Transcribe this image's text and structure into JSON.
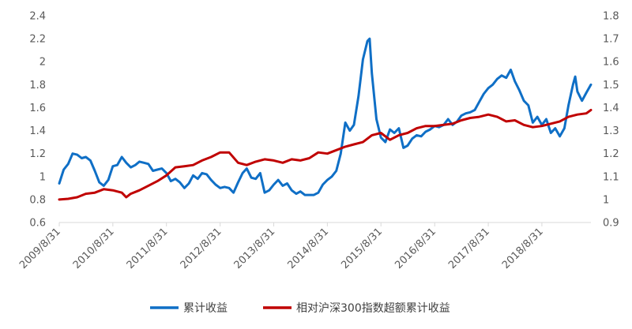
{
  "chart_data": {
    "type": "line",
    "grid": false,
    "legend_position": "bottom",
    "left_axis": {
      "range": [
        0.6,
        2.4
      ],
      "ticks": [
        "0.6",
        "0.8",
        "1",
        "1.2",
        "1.4",
        "1.6",
        "1.8",
        "2",
        "2.2",
        "2.4"
      ]
    },
    "right_axis": {
      "range": [
        0.9,
        1.8
      ],
      "ticks": [
        "0.9",
        "1",
        "1.1",
        "1.2",
        "1.3",
        "1.4",
        "1.5",
        "1.6",
        "1.7",
        "1.8"
      ]
    },
    "x_ticks": [
      "2009/8/31",
      "2010/8/31",
      "2011/8/31",
      "2012/8/31",
      "2013/8/31",
      "2014/8/31",
      "2015/8/31",
      "2016/8/31",
      "2017/8/31",
      "2018/8/31"
    ],
    "x_range": [
      "2009-08-31",
      "2019-07-31"
    ],
    "series": [
      {
        "name": "累计收益",
        "axis": "left",
        "color": "#0f6fc6",
        "points": [
          [
            "2009-08-31",
            0.94
          ],
          [
            "2009-09-30",
            1.06
          ],
          [
            "2009-10-31",
            1.11
          ],
          [
            "2009-11-30",
            1.2
          ],
          [
            "2009-12-31",
            1.19
          ],
          [
            "2010-01-31",
            1.16
          ],
          [
            "2010-02-28",
            1.17
          ],
          [
            "2010-03-31",
            1.14
          ],
          [
            "2010-04-30",
            1.05
          ],
          [
            "2010-05-31",
            0.95
          ],
          [
            "2010-06-30",
            0.92
          ],
          [
            "2010-07-31",
            0.97
          ],
          [
            "2010-08-31",
            1.09
          ],
          [
            "2010-09-30",
            1.1
          ],
          [
            "2010-10-31",
            1.17
          ],
          [
            "2010-11-30",
            1.12
          ],
          [
            "2010-12-31",
            1.08
          ],
          [
            "2011-01-31",
            1.1
          ],
          [
            "2011-02-28",
            1.13
          ],
          [
            "2011-03-31",
            1.12
          ],
          [
            "2011-04-30",
            1.11
          ],
          [
            "2011-05-31",
            1.05
          ],
          [
            "2011-06-30",
            1.06
          ],
          [
            "2011-07-31",
            1.07
          ],
          [
            "2011-08-31",
            1.03
          ],
          [
            "2011-09-30",
            0.96
          ],
          [
            "2011-10-31",
            0.98
          ],
          [
            "2011-11-30",
            0.95
          ],
          [
            "2011-12-31",
            0.9
          ],
          [
            "2012-01-31",
            0.94
          ],
          [
            "2012-02-29",
            1.01
          ],
          [
            "2012-03-31",
            0.98
          ],
          [
            "2012-04-30",
            1.03
          ],
          [
            "2012-05-31",
            1.02
          ],
          [
            "2012-06-30",
            0.97
          ],
          [
            "2012-07-31",
            0.93
          ],
          [
            "2012-08-31",
            0.9
          ],
          [
            "2012-09-30",
            0.91
          ],
          [
            "2012-10-31",
            0.9
          ],
          [
            "2012-11-30",
            0.86
          ],
          [
            "2012-12-31",
            0.95
          ],
          [
            "2013-01-31",
            1.03
          ],
          [
            "2013-02-28",
            1.07
          ],
          [
            "2013-03-31",
            0.99
          ],
          [
            "2013-04-30",
            0.98
          ],
          [
            "2013-05-31",
            1.03
          ],
          [
            "2013-06-30",
            0.86
          ],
          [
            "2013-07-31",
            0.88
          ],
          [
            "2013-08-31",
            0.93
          ],
          [
            "2013-09-30",
            0.97
          ],
          [
            "2013-10-31",
            0.92
          ],
          [
            "2013-11-30",
            0.94
          ],
          [
            "2013-12-31",
            0.88
          ],
          [
            "2014-01-31",
            0.85
          ],
          [
            "2014-02-28",
            0.87
          ],
          [
            "2014-03-31",
            0.84
          ],
          [
            "2014-04-30",
            0.84
          ],
          [
            "2014-05-31",
            0.84
          ],
          [
            "2014-06-30",
            0.86
          ],
          [
            "2014-07-31",
            0.93
          ],
          [
            "2014-08-31",
            0.97
          ],
          [
            "2014-09-30",
            1.0
          ],
          [
            "2014-10-31",
            1.05
          ],
          [
            "2014-11-30",
            1.2
          ],
          [
            "2014-12-31",
            1.47
          ],
          [
            "2015-01-31",
            1.4
          ],
          [
            "2015-02-28",
            1.45
          ],
          [
            "2015-03-31",
            1.7
          ],
          [
            "2015-04-30",
            2.02
          ],
          [
            "2015-05-31",
            2.18
          ],
          [
            "2015-06-15",
            2.2
          ],
          [
            "2015-06-30",
            1.9
          ],
          [
            "2015-07-31",
            1.5
          ],
          [
            "2015-08-31",
            1.34
          ],
          [
            "2015-09-30",
            1.3
          ],
          [
            "2015-10-31",
            1.41
          ],
          [
            "2015-11-30",
            1.38
          ],
          [
            "2015-12-31",
            1.42
          ],
          [
            "2016-01-31",
            1.25
          ],
          [
            "2016-02-29",
            1.27
          ],
          [
            "2016-03-31",
            1.33
          ],
          [
            "2016-04-30",
            1.36
          ],
          [
            "2016-05-31",
            1.35
          ],
          [
            "2016-06-30",
            1.39
          ],
          [
            "2016-07-31",
            1.41
          ],
          [
            "2016-08-31",
            1.44
          ],
          [
            "2016-09-30",
            1.43
          ],
          [
            "2016-10-31",
            1.45
          ],
          [
            "2016-11-30",
            1.5
          ],
          [
            "2016-12-31",
            1.45
          ],
          [
            "2017-01-31",
            1.48
          ],
          [
            "2017-02-28",
            1.53
          ],
          [
            "2017-03-31",
            1.55
          ],
          [
            "2017-04-30",
            1.56
          ],
          [
            "2017-05-31",
            1.58
          ],
          [
            "2017-06-30",
            1.65
          ],
          [
            "2017-07-31",
            1.72
          ],
          [
            "2017-08-31",
            1.77
          ],
          [
            "2017-09-30",
            1.8
          ],
          [
            "2017-10-31",
            1.85
          ],
          [
            "2017-11-30",
            1.88
          ],
          [
            "2017-12-31",
            1.86
          ],
          [
            "2018-01-31",
            1.93
          ],
          [
            "2018-02-28",
            1.83
          ],
          [
            "2018-03-31",
            1.75
          ],
          [
            "2018-04-30",
            1.66
          ],
          [
            "2018-05-31",
            1.62
          ],
          [
            "2018-06-30",
            1.47
          ],
          [
            "2018-07-31",
            1.52
          ],
          [
            "2018-08-31",
            1.45
          ],
          [
            "2018-09-30",
            1.5
          ],
          [
            "2018-10-31",
            1.38
          ],
          [
            "2018-11-30",
            1.42
          ],
          [
            "2018-12-31",
            1.35
          ],
          [
            "2019-01-31",
            1.42
          ],
          [
            "2019-02-28",
            1.62
          ],
          [
            "2019-03-31",
            1.8
          ],
          [
            "2019-04-15",
            1.87
          ],
          [
            "2019-04-30",
            1.74
          ],
          [
            "2019-05-31",
            1.66
          ],
          [
            "2019-06-30",
            1.73
          ],
          [
            "2019-07-31",
            1.8
          ]
        ]
      },
      {
        "name": "相对沪深300指数超额累计收益",
        "axis": "right",
        "color": "#c00000",
        "points": [
          [
            "2009-08-31",
            1.0
          ],
          [
            "2009-10-31",
            1.003
          ],
          [
            "2009-12-31",
            1.01
          ],
          [
            "2010-02-28",
            1.025
          ],
          [
            "2010-04-30",
            1.03
          ],
          [
            "2010-06-30",
            1.045
          ],
          [
            "2010-08-31",
            1.04
          ],
          [
            "2010-10-31",
            1.03
          ],
          [
            "2010-11-30",
            1.01
          ],
          [
            "2010-12-31",
            1.025
          ],
          [
            "2011-02-28",
            1.04
          ],
          [
            "2011-04-30",
            1.06
          ],
          [
            "2011-06-30",
            1.08
          ],
          [
            "2011-08-31",
            1.105
          ],
          [
            "2011-10-31",
            1.14
          ],
          [
            "2011-12-31",
            1.145
          ],
          [
            "2012-02-29",
            1.15
          ],
          [
            "2012-04-30",
            1.17
          ],
          [
            "2012-06-30",
            1.185
          ],
          [
            "2012-08-31",
            1.205
          ],
          [
            "2012-10-31",
            1.205
          ],
          [
            "2012-12-31",
            1.16
          ],
          [
            "2013-02-28",
            1.15
          ],
          [
            "2013-04-30",
            1.165
          ],
          [
            "2013-06-30",
            1.175
          ],
          [
            "2013-08-31",
            1.17
          ],
          [
            "2013-10-31",
            1.16
          ],
          [
            "2013-12-31",
            1.175
          ],
          [
            "2014-02-28",
            1.17
          ],
          [
            "2014-04-30",
            1.18
          ],
          [
            "2014-06-30",
            1.205
          ],
          [
            "2014-08-31",
            1.2
          ],
          [
            "2014-10-31",
            1.215
          ],
          [
            "2014-12-31",
            1.23
          ],
          [
            "2015-02-28",
            1.24
          ],
          [
            "2015-04-30",
            1.25
          ],
          [
            "2015-06-30",
            1.28
          ],
          [
            "2015-08-31",
            1.29
          ],
          [
            "2015-10-31",
            1.26
          ],
          [
            "2015-12-31",
            1.28
          ],
          [
            "2016-02-29",
            1.29
          ],
          [
            "2016-04-30",
            1.31
          ],
          [
            "2016-06-30",
            1.32
          ],
          [
            "2016-08-31",
            1.32
          ],
          [
            "2016-10-31",
            1.325
          ],
          [
            "2016-12-31",
            1.33
          ],
          [
            "2017-02-28",
            1.345
          ],
          [
            "2017-04-30",
            1.355
          ],
          [
            "2017-06-30",
            1.36
          ],
          [
            "2017-08-31",
            1.37
          ],
          [
            "2017-10-31",
            1.36
          ],
          [
            "2017-12-31",
            1.34
          ],
          [
            "2018-02-28",
            1.345
          ],
          [
            "2018-04-30",
            1.325
          ],
          [
            "2018-06-30",
            1.315
          ],
          [
            "2018-08-31",
            1.32
          ],
          [
            "2018-10-31",
            1.33
          ],
          [
            "2018-12-31",
            1.34
          ],
          [
            "2019-02-28",
            1.36
          ],
          [
            "2019-04-30",
            1.37
          ],
          [
            "2019-06-30",
            1.375
          ],
          [
            "2019-07-31",
            1.39
          ]
        ]
      }
    ]
  }
}
